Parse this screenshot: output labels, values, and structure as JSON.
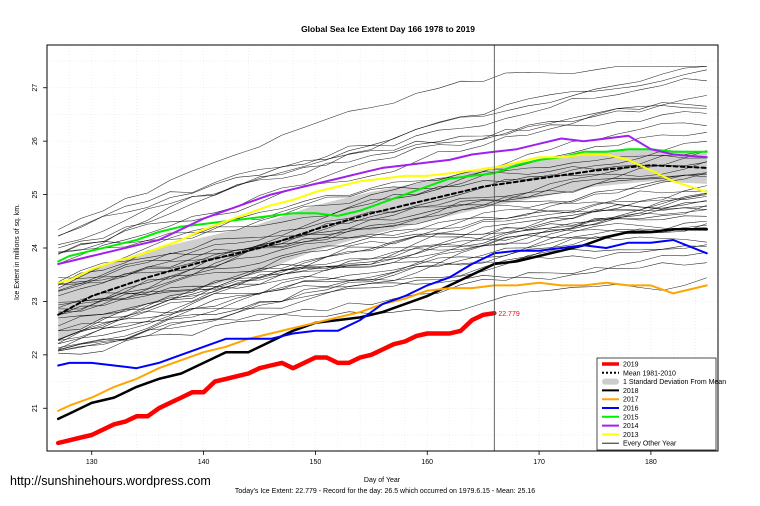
{
  "chart_data": {
    "type": "line",
    "title": "Global Sea Ice Extent Day 166 1978 to 2019",
    "xlabel": "Day of Year",
    "ylabel": "Ice Extent in millions of sq. km.",
    "xlim": [
      126,
      186
    ],
    "ylim": [
      20.2,
      27.8
    ],
    "xticks": [
      130,
      140,
      150,
      160,
      170,
      180
    ],
    "yticks": [
      21,
      22,
      23,
      24,
      25,
      26,
      27
    ],
    "grid": true,
    "vline": 166,
    "legend": {
      "position": "bottom-right",
      "entries": [
        {
          "label": "2019",
          "color": "#ff0000",
          "style": "thick"
        },
        {
          "label": "Mean 1981-2010",
          "color": "#000000",
          "style": "dashed"
        },
        {
          "label": "1 Standard Deviation From Mean",
          "color": "#cccccc",
          "style": "band"
        },
        {
          "label": "2018",
          "color": "#000000",
          "style": "solid"
        },
        {
          "label": "2017",
          "color": "#ffa500",
          "style": "solid"
        },
        {
          "label": "2016",
          "color": "#0000ff",
          "style": "solid"
        },
        {
          "label": "2015",
          "color": "#00ee00",
          "style": "solid"
        },
        {
          "label": "2014",
          "color": "#a020f0",
          "style": "solid"
        },
        {
          "label": "2013",
          "color": "#ffff00",
          "style": "solid"
        },
        {
          "label": "Every Other Year",
          "color": "#000000",
          "style": "thin"
        }
      ]
    },
    "annotation": {
      "text": "22.779",
      "x": 166,
      "y": 22.779
    },
    "subtitle": "Today's Ice Extent: 22.779  - Record for the day: 26.5 which occurred on 1979.6.15  - Mean: 25.16",
    "watermark": "http://sunshinehours.wordpress.com",
    "std_band": {
      "x": [
        127,
        130,
        135,
        140,
        145,
        150,
        155,
        160,
        165,
        170,
        175,
        180,
        185
      ],
      "lower": [
        22.25,
        22.6,
        22.95,
        23.25,
        23.55,
        23.95,
        24.25,
        24.5,
        24.75,
        24.95,
        25.15,
        25.25,
        25.2
      ],
      "upper": [
        23.25,
        23.6,
        23.95,
        24.2,
        24.45,
        24.8,
        25.05,
        25.25,
        25.5,
        25.65,
        25.8,
        25.85,
        25.8
      ]
    },
    "series": [
      {
        "name": "Mean 1981-2010",
        "color": "#000000",
        "width": 2,
        "dash": "4,3",
        "x": [
          127,
          130,
          135,
          140,
          145,
          150,
          155,
          160,
          165,
          170,
          175,
          180,
          185
        ],
        "values": [
          22.75,
          23.1,
          23.45,
          23.75,
          24.0,
          24.35,
          24.65,
          24.9,
          25.15,
          25.3,
          25.45,
          25.55,
          25.5
        ]
      },
      {
        "name": "2018",
        "color": "#000000",
        "width": 2.5,
        "x": [
          127,
          128,
          130,
          132,
          134,
          136,
          138,
          140,
          142,
          144,
          146,
          148,
          150,
          152,
          154,
          156,
          158,
          160,
          162,
          164,
          166,
          168,
          170,
          172,
          174,
          176,
          178,
          180,
          182,
          185
        ],
        "values": [
          20.8,
          20.9,
          21.1,
          21.2,
          21.4,
          21.55,
          21.65,
          21.85,
          22.05,
          22.05,
          22.25,
          22.45,
          22.6,
          22.65,
          22.7,
          22.8,
          22.95,
          23.1,
          23.3,
          23.5,
          23.7,
          23.75,
          23.85,
          23.95,
          24.05,
          24.2,
          24.3,
          24.3,
          24.35,
          24.35
        ]
      },
      {
        "name": "2017",
        "color": "#ffa500",
        "width": 2,
        "x": [
          127,
          128,
          130,
          132,
          134,
          136,
          138,
          140,
          142,
          144,
          146,
          148,
          150,
          152,
          154,
          156,
          158,
          160,
          162,
          164,
          166,
          168,
          170,
          172,
          174,
          176,
          178,
          180,
          182,
          185
        ],
        "values": [
          20.95,
          21.05,
          21.2,
          21.4,
          21.55,
          21.75,
          21.9,
          22.05,
          22.15,
          22.3,
          22.4,
          22.5,
          22.6,
          22.7,
          22.8,
          22.95,
          23.05,
          23.2,
          23.25,
          23.25,
          23.3,
          23.3,
          23.35,
          23.3,
          23.3,
          23.35,
          23.3,
          23.3,
          23.15,
          23.3
        ]
      },
      {
        "name": "2016",
        "color": "#0000ff",
        "width": 2,
        "x": [
          127,
          128,
          130,
          132,
          134,
          136,
          138,
          140,
          142,
          144,
          146,
          148,
          150,
          152,
          154,
          156,
          158,
          160,
          162,
          164,
          166,
          168,
          170,
          172,
          174,
          176,
          178,
          180,
          182,
          185
        ],
        "values": [
          21.8,
          21.85,
          21.85,
          21.8,
          21.75,
          21.85,
          22.0,
          22.15,
          22.3,
          22.3,
          22.3,
          22.4,
          22.45,
          22.45,
          22.65,
          22.95,
          23.1,
          23.3,
          23.45,
          23.7,
          23.9,
          23.95,
          23.95,
          24.0,
          24.05,
          24.0,
          24.1,
          24.1,
          24.15,
          23.9
        ]
      },
      {
        "name": "2015",
        "color": "#00ee00",
        "width": 2,
        "x": [
          127,
          128,
          130,
          132,
          134,
          136,
          138,
          140,
          142,
          144,
          146,
          148,
          150,
          152,
          154,
          156,
          158,
          160,
          162,
          164,
          166,
          168,
          170,
          172,
          174,
          176,
          178,
          180,
          182,
          185
        ],
        "values": [
          23.75,
          23.85,
          23.95,
          24.05,
          24.15,
          24.3,
          24.4,
          24.45,
          24.5,
          24.55,
          24.6,
          24.65,
          24.65,
          24.6,
          24.7,
          24.85,
          25.0,
          25.15,
          25.3,
          25.35,
          25.4,
          25.55,
          25.65,
          25.7,
          25.8,
          25.8,
          25.85,
          25.85,
          25.8,
          25.8
        ]
      },
      {
        "name": "2014",
        "color": "#a020f0",
        "width": 2,
        "x": [
          127,
          128,
          130,
          132,
          134,
          136,
          138,
          140,
          142,
          144,
          146,
          148,
          150,
          152,
          154,
          156,
          158,
          160,
          162,
          164,
          166,
          168,
          170,
          172,
          174,
          176,
          178,
          180,
          182,
          185
        ],
        "values": [
          23.7,
          23.75,
          23.85,
          23.95,
          24.05,
          24.15,
          24.35,
          24.55,
          24.7,
          24.85,
          25.0,
          25.1,
          25.2,
          25.3,
          25.4,
          25.5,
          25.55,
          25.6,
          25.65,
          25.75,
          25.8,
          25.85,
          25.95,
          26.05,
          26.0,
          26.05,
          26.1,
          25.85,
          25.75,
          25.7
        ]
      },
      {
        "name": "2013",
        "color": "#ffff00",
        "width": 2,
        "x": [
          127,
          128,
          130,
          132,
          134,
          136,
          138,
          140,
          142,
          144,
          146,
          148,
          150,
          152,
          154,
          156,
          158,
          160,
          162,
          164,
          166,
          168,
          170,
          172,
          174,
          176,
          178,
          180,
          182,
          185
        ],
        "values": [
          23.35,
          23.4,
          23.6,
          23.75,
          23.85,
          24.0,
          24.15,
          24.35,
          24.5,
          24.65,
          24.8,
          24.9,
          25.05,
          25.15,
          25.25,
          25.3,
          25.35,
          25.35,
          25.4,
          25.45,
          25.5,
          25.6,
          25.7,
          25.7,
          25.75,
          25.75,
          25.65,
          25.45,
          25.25,
          25.05
        ]
      },
      {
        "name": "2019",
        "color": "#ff0000",
        "width": 4.5,
        "x": [
          127,
          128,
          129,
          130,
          131,
          132,
          133,
          134,
          135,
          136,
          137,
          138,
          139,
          140,
          141,
          142,
          143,
          144,
          145,
          146,
          147,
          148,
          149,
          150,
          151,
          152,
          153,
          154,
          155,
          156,
          157,
          158,
          159,
          160,
          161,
          162,
          163,
          164,
          165,
          166
        ],
        "values": [
          20.35,
          20.4,
          20.45,
          20.5,
          20.6,
          20.7,
          20.75,
          20.85,
          20.85,
          21.0,
          21.1,
          21.2,
          21.3,
          21.3,
          21.5,
          21.55,
          21.6,
          21.65,
          21.75,
          21.8,
          21.85,
          21.75,
          21.85,
          21.95,
          21.95,
          21.85,
          21.85,
          21.95,
          22.0,
          22.1,
          22.2,
          22.25,
          22.35,
          22.4,
          22.4,
          22.4,
          22.45,
          22.65,
          22.75,
          22.779
        ]
      }
    ]
  }
}
